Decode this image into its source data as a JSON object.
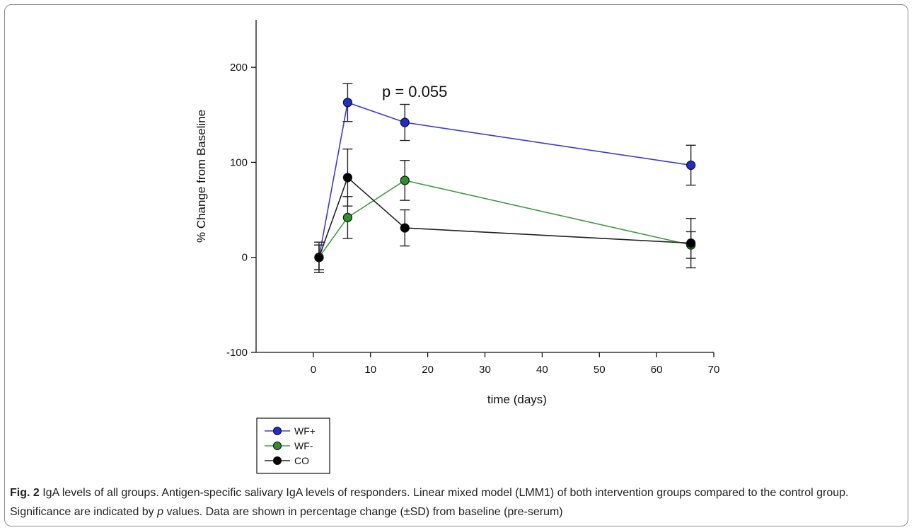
{
  "chart_data": {
    "type": "line",
    "title": "",
    "xlabel": "time (days)",
    "ylabel": "% Change from Baseline",
    "xlim": [
      -10,
      70
    ],
    "ylim": [
      -100,
      250
    ],
    "xticks": [
      0,
      10,
      20,
      30,
      40,
      50,
      60,
      70
    ],
    "yticks": [
      -100,
      0,
      100,
      200
    ],
    "grid": false,
    "legend_position": "bottom-left",
    "series": [
      {
        "name": "WF+",
        "color": "#3b3bd6",
        "marker_color": "#1f2ec9",
        "points": [
          {
            "x": 1,
            "y": 0,
            "sd": 13
          },
          {
            "x": 6,
            "y": 163,
            "sd": 20
          },
          {
            "x": 16,
            "y": 142,
            "sd": 19
          },
          {
            "x": 66,
            "y": 97,
            "sd": 21
          }
        ]
      },
      {
        "name": "WF-",
        "color": "#3f9a3f",
        "marker_color": "#2f8f2f",
        "points": [
          {
            "x": 1,
            "y": 0,
            "sd": 13
          },
          {
            "x": 6,
            "y": 42,
            "sd": 22
          },
          {
            "x": 16,
            "y": 81,
            "sd": 21
          },
          {
            "x": 66,
            "y": 13,
            "sd": 14
          }
        ]
      },
      {
        "name": "CO",
        "color": "#222222",
        "marker_color": "#000000",
        "points": [
          {
            "x": 1,
            "y": 0,
            "sd": 16
          },
          {
            "x": 6,
            "y": 84,
            "sd": 30
          },
          {
            "x": 16,
            "y": 31,
            "sd": 19
          },
          {
            "x": 66,
            "y": 15,
            "sd": 26
          }
        ]
      }
    ],
    "annotations": [
      {
        "text": "p = 0.055",
        "x": 16,
        "y": 175,
        "color": "#2b2bc8"
      }
    ]
  },
  "caption": {
    "label": "Fig. 2",
    "text": "IgA levels of all groups. Antigen-specific salivary IgA levels of responders. Linear mixed model (LMM1) of both intervention groups compared to the control group. Significance are indicated by ",
    "italic": "p",
    "text_end": " values. Data are shown in percentage change (±SD) from baseline (pre-serum)"
  }
}
